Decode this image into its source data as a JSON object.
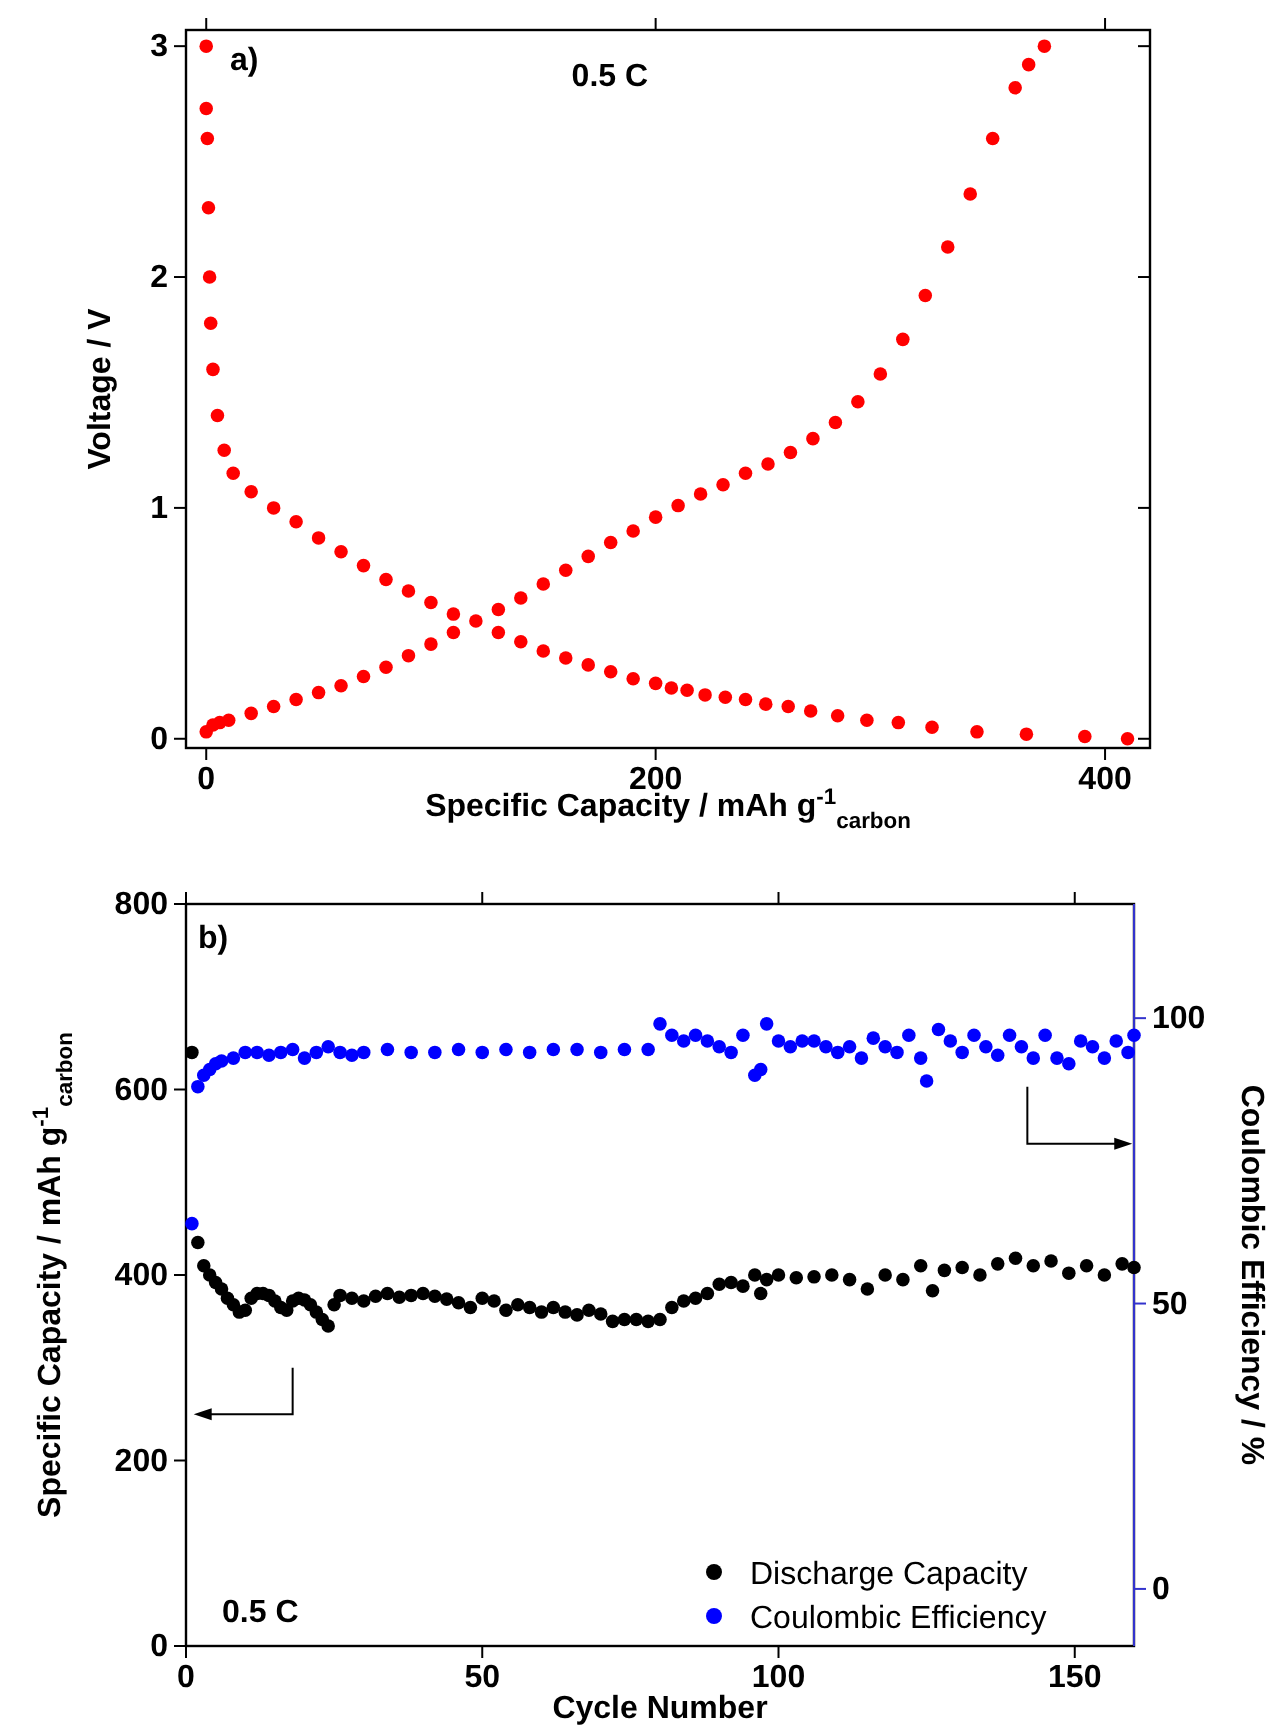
{
  "chart_data": [
    {
      "type": "scatter",
      "xlabel": "Specific Capacity / mAh g$^{-1}$$_{carbon}$",
      "ylabel": "Voltage / V",
      "xlim": [
        -9,
        420
      ],
      "xticks": [
        0,
        200,
        400
      ],
      "ylim": [
        -0.04,
        3.07
      ],
      "yticks": [
        0,
        1,
        2,
        3
      ],
      "marker": "circle",
      "annotations": [
        "a)",
        "0.5 C"
      ],
      "series": [
        {
          "color": "#ff0000",
          "x": [
            0,
            0,
            0.5,
            1,
            1.5,
            2,
            3,
            5,
            8,
            12,
            20,
            30,
            40,
            50,
            60,
            70,
            80,
            90,
            100,
            110,
            130,
            140,
            150,
            160,
            170,
            180,
            190,
            200,
            207,
            214,
            222,
            231,
            240,
            249,
            259,
            269,
            281,
            294,
            308,
            323,
            343,
            365,
            391,
            410
          ],
          "values": [
            3.0,
            2.73,
            2.6,
            2.3,
            2.0,
            1.8,
            1.6,
            1.4,
            1.25,
            1.15,
            1.07,
            1.0,
            0.94,
            0.87,
            0.81,
            0.75,
            0.69,
            0.64,
            0.59,
            0.54,
            0.46,
            0.42,
            0.38,
            0.35,
            0.32,
            0.29,
            0.26,
            0.24,
            0.22,
            0.21,
            0.19,
            0.18,
            0.17,
            0.15,
            0.14,
            0.12,
            0.1,
            0.08,
            0.07,
            0.05,
            0.03,
            0.02,
            0.01,
            0.0
          ]
        },
        {
          "color": "#ff0000",
          "x": [
            0,
            3,
            6,
            10,
            20,
            30,
            40,
            50,
            60,
            70,
            80,
            90,
            100,
            110,
            120,
            130,
            140,
            150,
            160,
            170,
            180,
            190,
            200,
            210,
            220,
            230,
            240,
            250,
            260,
            270,
            280,
            290,
            300,
            310,
            320,
            330,
            340,
            350,
            360,
            366,
            373
          ],
          "values": [
            0.03,
            0.06,
            0.07,
            0.08,
            0.11,
            0.14,
            0.17,
            0.2,
            0.23,
            0.27,
            0.31,
            0.36,
            0.41,
            0.46,
            0.51,
            0.56,
            0.61,
            0.67,
            0.73,
            0.79,
            0.85,
            0.9,
            0.96,
            1.01,
            1.06,
            1.1,
            1.15,
            1.19,
            1.24,
            1.3,
            1.37,
            1.46,
            1.58,
            1.73,
            1.92,
            2.13,
            2.36,
            2.6,
            2.82,
            2.92,
            3.0
          ]
        }
      ]
    },
    {
      "type": "scatter",
      "xlabel": "Cycle Number",
      "ylabel": "Specific Capacity / mAh g$^{-1}$$_{carbon}$",
      "y2label": "Coulombic Efficiency / %",
      "xlim": [
        0,
        160
      ],
      "xticks": [
        0,
        50,
        100,
        150
      ],
      "ylim": [
        0,
        800
      ],
      "yticks": [
        0,
        200,
        400,
        600,
        800
      ],
      "y2lim": [
        -10,
        120
      ],
      "y2ticks": [
        0,
        50,
        100
      ],
      "marker": "circle",
      "legend": "bottom right",
      "annotations": [
        "b)",
        "0.5 C"
      ],
      "series": [
        {
          "name": "Discharge Capacity",
          "color": "#000000",
          "x": [
            1,
            2,
            3,
            4,
            5,
            6,
            7,
            8,
            9,
            10,
            11,
            12,
            13,
            14,
            15,
            16,
            17,
            18,
            19,
            20,
            21,
            22,
            23,
            24,
            25,
            26,
            28,
            30,
            32,
            34,
            36,
            38,
            40,
            42,
            44,
            46,
            48,
            50,
            52,
            54,
            56,
            58,
            60,
            62,
            64,
            66,
            68,
            70,
            72,
            74,
            76,
            78,
            80,
            82,
            84,
            86,
            88,
            90,
            92,
            94,
            96,
            97,
            98,
            100,
            103,
            106,
            109,
            112,
            115,
            118,
            121,
            124,
            126,
            128,
            131,
            134,
            137,
            140,
            143,
            146,
            149,
            152,
            155,
            158,
            160
          ],
          "values": [
            640,
            435,
            410,
            400,
            392,
            385,
            375,
            368,
            360,
            362,
            375,
            380,
            380,
            378,
            372,
            365,
            362,
            372,
            375,
            373,
            368,
            360,
            352,
            345,
            368,
            378,
            375,
            372,
            377,
            380,
            376,
            378,
            380,
            377,
            374,
            370,
            365,
            375,
            372,
            362,
            368,
            365,
            360,
            365,
            360,
            357,
            362,
            358,
            350,
            352,
            352,
            350,
            352,
            365,
            372,
            375,
            380,
            390,
            392,
            388,
            400,
            380,
            395,
            400,
            397,
            398,
            400,
            395,
            385,
            400,
            395,
            410,
            383,
            405,
            408,
            400,
            412,
            418,
            410,
            415,
            402,
            410,
            400,
            412,
            408
          ]
        },
        {
          "name": "Coulombic Efficiency",
          "color": "#0000ff",
          "axis": "y2",
          "x": [
            1,
            2,
            3,
            4,
            5,
            6,
            8,
            10,
            12,
            14,
            16,
            18,
            20,
            22,
            24,
            26,
            28,
            30,
            34,
            38,
            42,
            46,
            50,
            54,
            58,
            62,
            66,
            70,
            74,
            78,
            80,
            82,
            84,
            86,
            88,
            90,
            92,
            94,
            96,
            97,
            98,
            100,
            102,
            104,
            106,
            108,
            110,
            112,
            114,
            116,
            118,
            120,
            122,
            124,
            125,
            127,
            129,
            131,
            133,
            135,
            137,
            139,
            141,
            143,
            145,
            147,
            149,
            151,
            153,
            155,
            157,
            159,
            160
          ],
          "values": [
            64,
            88,
            90,
            91,
            92,
            92.5,
            93,
            94,
            94,
            93.5,
            94,
            94.5,
            93,
            94,
            95,
            94,
            93.5,
            94,
            94.5,
            94,
            94,
            94.5,
            94,
            94.5,
            94,
            94.5,
            94.5,
            94,
            94.5,
            94.5,
            99,
            97,
            96,
            97,
            96,
            95,
            94,
            97,
            90,
            91,
            99,
            96,
            95,
            96,
            96,
            95,
            94,
            95,
            93,
            96.5,
            95,
            94,
            97,
            93,
            89,
            98,
            96,
            94,
            97,
            95,
            93.5,
            97,
            95,
            93,
            97,
            93,
            92,
            96,
            95,
            93,
            96,
            94,
            97
          ]
        }
      ]
    }
  ]
}
